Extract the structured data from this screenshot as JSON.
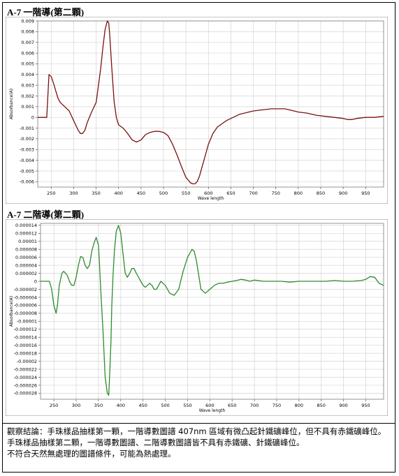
{
  "sections": [
    {
      "title": "A-7 一階導(第二顆)"
    },
    {
      "title": "A-7 二階導(第二顆)"
    }
  ],
  "conclusion": {
    "line1": "觀察結論：手珠樣品抽樣第一顆，一階導數圖譜 407nm 區域有微凸起針鐵礦峰位，但不具有赤鐵礦峰位。",
    "line2": "手珠樣品抽樣第二顆，一階導數圖譜、二階導數圖譜皆不具有赤鐵礦、針鐵礦峰位。",
    "line3": "不符合天然無處理的圖譜條件，可能為熱處理。"
  },
  "chart_data": [
    {
      "type": "line",
      "xlabel": "Wave length",
      "ylabel": "Absorbance(A)",
      "xlim": [
        220,
        990
      ],
      "ylim": [
        -0.0065,
        0.009
      ],
      "x_ticks": [
        "250",
        "300",
        "350",
        "400",
        "450",
        "500",
        "550",
        "600",
        "650",
        "700",
        "750",
        "800",
        "850",
        "900",
        "950"
      ],
      "y_ticks": [
        "0.009",
        "0.008",
        "0.007",
        "0.006",
        "0.005",
        "0.004",
        "0.003",
        "0.002",
        "0.001",
        "0",
        "-0.001",
        "-0.002",
        "-0.003",
        "-0.004",
        "-0.005",
        "-0.006"
      ],
      "grid": true,
      "color": "#7a1010",
      "x": [
        220,
        225,
        230,
        235,
        240,
        245,
        250,
        255,
        260,
        265,
        270,
        280,
        290,
        300,
        310,
        315,
        320,
        325,
        330,
        340,
        350,
        360,
        365,
        370,
        375,
        378,
        380,
        385,
        390,
        395,
        400,
        410,
        420,
        430,
        440,
        450,
        460,
        470,
        480,
        490,
        500,
        510,
        520,
        530,
        540,
        550,
        560,
        565,
        570,
        575,
        580,
        590,
        600,
        610,
        620,
        630,
        640,
        650,
        660,
        670,
        680,
        690,
        700,
        720,
        740,
        760,
        770,
        780,
        800,
        820,
        840,
        860,
        880,
        900,
        910,
        920,
        930,
        950,
        970,
        990
      ],
      "y": [
        0,
        0,
        0,
        0,
        0,
        0.004,
        0.0038,
        0.0032,
        0.0025,
        0.0018,
        0.0014,
        0.001,
        0.0006,
        -0.0003,
        -0.0012,
        -0.0015,
        -0.0015,
        -0.0012,
        -0.0005,
        0.0005,
        0.0014,
        0.0045,
        0.0065,
        0.0082,
        0.009,
        0.0088,
        0.0078,
        0.0045,
        0.0015,
        0,
        -0.0007,
        -0.001,
        -0.0015,
        -0.0021,
        -0.0023,
        -0.0021,
        -0.0016,
        -0.0014,
        -0.0013,
        -0.0013,
        -0.0014,
        -0.0017,
        -0.0025,
        -0.0035,
        -0.0046,
        -0.0056,
        -0.0061,
        -0.0062,
        -0.0062,
        -0.006,
        -0.0055,
        -0.004,
        -0.0025,
        -0.0015,
        -0.0009,
        -0.0006,
        -0.0003,
        -0.0001,
        0.0001,
        0.0003,
        0.0004,
        0.0005,
        0.0006,
        0.0007,
        0.0008,
        0.0008,
        0.0008,
        0.0007,
        0.0005,
        0.0004,
        0.0002,
        0.0001,
        0,
        -0.0001,
        -0.0002,
        -0.0002,
        -0.0001,
        0,
        0,
        0.0001
      ]
    },
    {
      "type": "line",
      "xlabel": "Wave length",
      "ylabel": "Absorbance(A)",
      "xlim": [
        220,
        990
      ],
      "ylim": [
        -2.95e-05,
        1.45e-05
      ],
      "x_ticks": [
        "250",
        "300",
        "350",
        "400",
        "450",
        "500",
        "550",
        "600",
        "650",
        "700",
        "750",
        "800",
        "850",
        "900",
        "950"
      ],
      "y_ticks": [
        "0.000014",
        "0.000012",
        "0.00001",
        "0.000008",
        "0.000006",
        "0.000004",
        "0.000002",
        "0",
        "-0.000002",
        "-0.000004",
        "-0.000006",
        "-0.000008",
        "-0.00001",
        "-0.000012",
        "-0.000014",
        "-0.000016",
        "-0.000018",
        "-0.00002",
        "-0.000022",
        "-0.000024",
        "-0.000026",
        "-0.000028"
      ],
      "grid": true,
      "color": "#2e8b2e",
      "x": [
        220,
        230,
        240,
        245,
        250,
        255,
        258,
        262,
        268,
        272,
        280,
        285,
        290,
        295,
        300,
        305,
        310,
        315,
        320,
        325,
        330,
        335,
        340,
        345,
        350,
        352,
        355,
        360,
        365,
        370,
        373,
        375,
        378,
        380,
        383,
        386,
        390,
        395,
        400,
        405,
        410,
        415,
        420,
        425,
        430,
        435,
        440,
        445,
        450,
        455,
        460,
        465,
        470,
        475,
        480,
        485,
        490,
        500,
        510,
        520,
        530,
        540,
        550,
        560,
        565,
        570,
        580,
        590,
        600,
        610,
        620,
        630,
        640,
        650,
        660,
        670,
        680,
        690,
        700,
        720,
        740,
        760,
        780,
        800,
        820,
        840,
        860,
        880,
        900,
        920,
        940,
        950,
        960,
        970,
        980,
        990
      ],
      "y": [
        0,
        0,
        0,
        -2e-06,
        -6e-06,
        -8e-06,
        -6e-06,
        -1e-06,
        2e-06,
        2.5e-06,
        1.5e-06,
        0,
        -1e-06,
        -1e-06,
        1e-06,
        4e-06,
        6.2e-06,
        6e-06,
        4e-06,
        3.2e-06,
        4e-06,
        7.5e-06,
        9.5e-06,
        1.1e-05,
        9e-06,
        5e-06,
        -2e-06,
        -1.2e-05,
        -2.4e-05,
        -2.8e-05,
        -2.85e-05,
        -2.4e-05,
        -1.5e-05,
        -6e-06,
        2e-06,
        8e-06,
        1.25e-05,
        1.4e-05,
        1.2e-05,
        7e-06,
        2e-06,
        1e-06,
        2e-06,
        3.2e-06,
        3.2e-06,
        2e-06,
        1e-06,
        0,
        -1e-06,
        -1.5e-06,
        -1e-06,
        -5e-07,
        -1e-06,
        -2e-06,
        -2e-06,
        -1e-06,
        0,
        -1e-06,
        -3e-06,
        -3.5e-06,
        -2e-06,
        2.5e-06,
        6e-06,
        8e-06,
        7.5e-06,
        5e-06,
        -2e-06,
        -3e-06,
        -2e-06,
        -1e-06,
        -5e-07,
        -5e-07,
        -2e-07,
        0,
        2e-07,
        5e-07,
        3e-07,
        0,
        3e-07,
        0,
        0,
        0,
        -2e-07,
        0,
        0,
        0,
        0,
        2e-07,
        0,
        0,
        2e-07,
        5e-07,
        1.2e-06,
        1e-06,
        -5e-07,
        -1e-06
      ]
    }
  ]
}
